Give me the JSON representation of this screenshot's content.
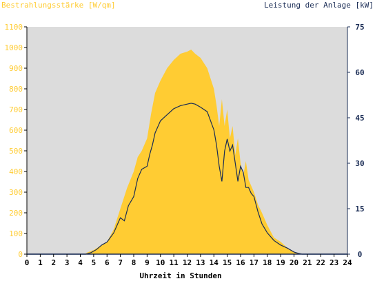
{
  "chart_data": {
    "type": "area",
    "left_axis_title": "Bestrahlungsstärke [W/qm]",
    "right_axis_title": "Leistung der Anlage [kW]",
    "xlabel": "Uhrzeit in Stunden",
    "x_range": [
      0,
      24
    ],
    "x_ticks": [
      "0",
      "1",
      "2",
      "3",
      "4",
      "5",
      "6",
      "7",
      "8",
      "9",
      "10",
      "11",
      "12",
      "13",
      "14",
      "15",
      "16",
      "17",
      "18",
      "19",
      "20",
      "21",
      "22",
      "23",
      "24"
    ],
    "left_ylim": [
      0,
      1100
    ],
    "left_ticks": [
      "0",
      "100",
      "200",
      "300",
      "400",
      "500",
      "600",
      "700",
      "800",
      "900",
      "1000",
      "1100"
    ],
    "right_ylim": [
      0,
      75
    ],
    "right_ticks": [
      "0",
      "15",
      "30",
      "45",
      "60",
      "75"
    ],
    "grid": false,
    "colors": {
      "irradiance": "#ffcc33",
      "power": "#1a2c55",
      "left_axis": "#ffcc33",
      "right_axis": "#1a2c55",
      "plot_background": "#dcdcdc"
    },
    "series": [
      {
        "axis": "left",
        "style": "area",
        "x": [
          0,
          4.3,
          4.6,
          5,
          5.5,
          6,
          6.5,
          7,
          7.5,
          8,
          8.3,
          8.6,
          9,
          9.3,
          9.6,
          10,
          10.5,
          11,
          11.5,
          12,
          12.3,
          12.6,
          13,
          13.5,
          14,
          14.2,
          14.4,
          14.6,
          14.8,
          15,
          15.2,
          15.4,
          15.6,
          15.8,
          16,
          16.2,
          16.4,
          16.6,
          16.8,
          17,
          17.3,
          17.6,
          18,
          18.5,
          19,
          19.5,
          20,
          20.3,
          20.6,
          24
        ],
        "y": [
          0,
          0,
          10,
          20,
          40,
          60,
          120,
          220,
          320,
          400,
          470,
          500,
          560,
          680,
          780,
          840,
          900,
          940,
          970,
          980,
          990,
          970,
          950,
          900,
          800,
          720,
          620,
          750,
          620,
          700,
          560,
          620,
          480,
          560,
          440,
          380,
          450,
          360,
          330,
          300,
          240,
          200,
          140,
          80,
          60,
          30,
          10,
          3,
          0,
          0
        ]
      },
      {
        "axis": "right",
        "style": "line",
        "x": [
          0,
          4.4,
          4.8,
          5.2,
          5.6,
          6,
          6.5,
          7,
          7.3,
          7.6,
          8,
          8.3,
          8.6,
          9,
          9.2,
          9.4,
          9.6,
          10,
          10.5,
          11,
          11.5,
          12,
          12.3,
          12.6,
          13,
          13.5,
          14,
          14.2,
          14.4,
          14.6,
          14.8,
          15,
          15.2,
          15.4,
          15.6,
          15.8,
          16,
          16.2,
          16.4,
          16.6,
          16.8,
          17,
          17.3,
          17.6,
          18,
          18.5,
          19,
          19.5,
          20,
          20.3,
          20.6,
          24
        ],
        "y": [
          0,
          0,
          0.5,
          1.5,
          3,
          4,
          7,
          12,
          11,
          16,
          19,
          25,
          28,
          29,
          33,
          36,
          40,
          44,
          46,
          48,
          49,
          49.5,
          49.8,
          49.5,
          48.5,
          47,
          41,
          36,
          29,
          24,
          34,
          38,
          34,
          36,
          30,
          24,
          29,
          27,
          22,
          22,
          20,
          19,
          14,
          10,
          7,
          4.5,
          3,
          2,
          0.7,
          0.3,
          0,
          0
        ]
      }
    ]
  }
}
